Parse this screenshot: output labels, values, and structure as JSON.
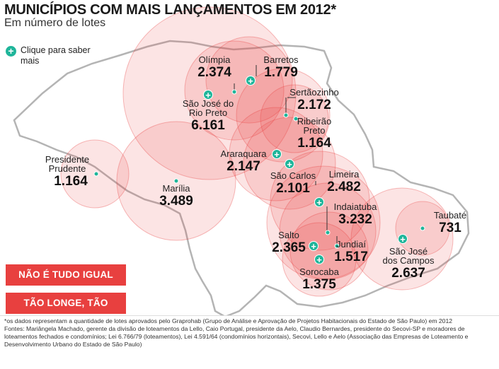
{
  "title": "MUNICÍPIOS COM MAIS LANÇAMENTOS EM 2012*",
  "subtitle": "Em número de lotes",
  "hint": {
    "icon": "plus-icon",
    "text": "Clique para saber mais"
  },
  "colors": {
    "accent": "#1fb59a",
    "bubble": "#e8403f",
    "button": "#e8403f",
    "map_land": "#ffffff",
    "map_outline": "#b4b4b4"
  },
  "cities": [
    {
      "name": "Olímpia",
      "value": "2.374"
    },
    {
      "name": "Barretos",
      "value": "1.779"
    },
    {
      "name": "São José do Rio Preto",
      "value": "6.161"
    },
    {
      "name": "Sertãozinho",
      "value": "2.172"
    },
    {
      "name": "Ribeirão Preto",
      "value": "1.164"
    },
    {
      "name": "Araraquara",
      "value": "2.147"
    },
    {
      "name": "São Carlos",
      "value": "2.101"
    },
    {
      "name": "Limeira",
      "value": "2.482"
    },
    {
      "name": "Presidente Prudente",
      "value": "1.164"
    },
    {
      "name": "Marília",
      "value": "3.489"
    },
    {
      "name": "Indaiatuba",
      "value": "3.232"
    },
    {
      "name": "Taubaté",
      "value": "731"
    },
    {
      "name": "Salto",
      "value": "2.365"
    },
    {
      "name": "Jundiaí",
      "value": "1.517"
    },
    {
      "name": "São José dos Campos",
      "value": "2.637"
    },
    {
      "name": "Sorocaba",
      "value": "1.375"
    }
  ],
  "buttons": {
    "tab1": "NÃO É TUDO IGUAL",
    "tab2": "TÃO LONGE, TÃO PERTO"
  },
  "footnote": {
    "line1": "*os dados representam a quantidade de lotes aprovados pelo Graprohab (Grupo de Análise e Aprovação de Projetos Habitacionais do Estado de São Paulo) em 2012",
    "line2": "Fontes: Mariângela Machado, gerente da divisão de loteamentos da Lello, Caio Portugal, presidente da Aelo, Claudio Bernardes, presidente do Secovi-SP e moradores de loteamentos fechados e condomínios; Lei 6.766/79 (loteamentos), Lei 4.591/64 (condomínios horizontais), Secovi, Lello e Aelo (Associação das Empresas de Loteamento e Desenvolvimento Urbano do Estado de São Paulo)"
  }
}
